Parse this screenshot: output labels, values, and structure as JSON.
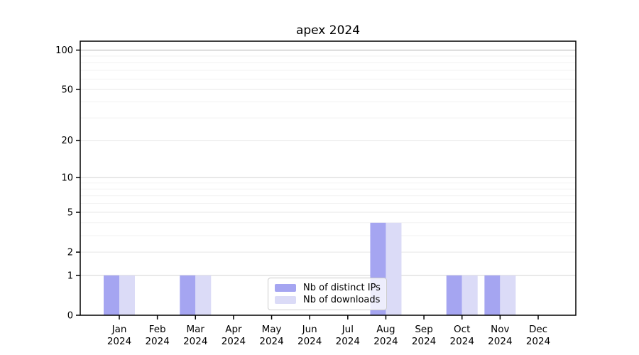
{
  "chart_data": {
    "type": "bar",
    "title": "apex 2024",
    "categories": [
      "Jan",
      "Feb",
      "Mar",
      "Apr",
      "May",
      "Jun",
      "Jul",
      "Aug",
      "Sep",
      "Oct",
      "Nov",
      "Dec"
    ],
    "category_sublabel": "2024",
    "series": [
      {
        "name": "Nb of distinct IPs",
        "color": "#a5a5f1",
        "values": [
          1,
          0,
          1,
          0,
          0,
          0,
          0,
          4,
          0,
          1,
          1,
          0
        ]
      },
      {
        "name": "Nb of downloads",
        "color": "#dbdbf7",
        "values": [
          1,
          0,
          1,
          0,
          0,
          0,
          0,
          4,
          0,
          1,
          1,
          0
        ]
      }
    ],
    "yticks": [
      0,
      1,
      2,
      5,
      10,
      20,
      50,
      100
    ],
    "yscale": "log1p",
    "ylim": [
      0,
      117
    ],
    "xlabel": "",
    "ylabel": "",
    "grid": true,
    "legend_position": "lower center",
    "colors": {
      "background": "#ffffff",
      "axis": "#000000",
      "tick_label": "#000000",
      "major_gridline": "#b0b0b0",
      "decade_gridline": "#d2d2d2",
      "labeled_gridline": "#e7e7e7",
      "minor_gridline": "#f2f2f2"
    }
  }
}
